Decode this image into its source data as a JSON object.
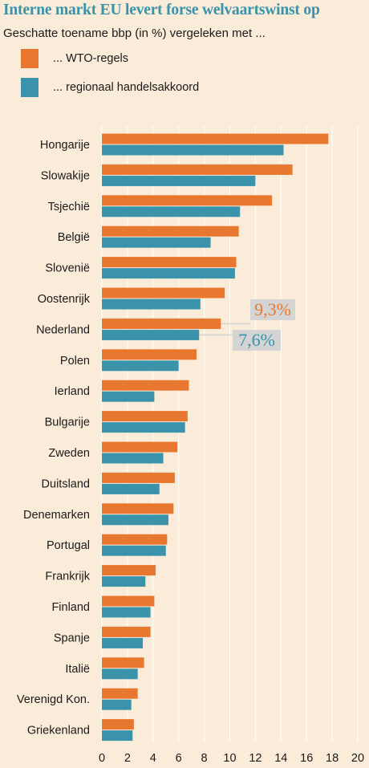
{
  "chart_data": {
    "type": "bar",
    "orientation": "horizontal",
    "title": "Interne markt EU levert forse welvaartswinst op",
    "subtitle": "Geschatte toename bbp (in %) vergeleken met ...",
    "categories": [
      "Hongarije",
      "Slowakije",
      "Tsjechië",
      "België",
      "Slovenië",
      "Oostenrijk",
      "Nederland",
      "Polen",
      "Ierland",
      "Bulgarije",
      "Zweden",
      "Duitsland",
      "Denemarken",
      "Portugal",
      "Frankrijk",
      "Finland",
      "Spanje",
      "Italië",
      "Verenigd Kon.",
      "Griekenland"
    ],
    "series": [
      {
        "name": "... WTO-regels",
        "color": "#e8782f",
        "values": [
          17.7,
          14.9,
          13.3,
          10.7,
          10.5,
          9.6,
          9.3,
          7.4,
          6.8,
          6.7,
          5.9,
          5.7,
          5.6,
          5.1,
          4.2,
          4.1,
          3.8,
          3.3,
          2.8,
          2.5
        ]
      },
      {
        "name": "... regionaal handelsakkoord",
        "color": "#3a92ab",
        "values": [
          14.2,
          12.0,
          10.8,
          8.5,
          10.4,
          7.7,
          7.6,
          6.0,
          4.1,
          6.5,
          4.8,
          4.5,
          5.2,
          5.0,
          3.4,
          3.8,
          3.2,
          2.8,
          2.3,
          2.4
        ]
      }
    ],
    "xlim": [
      0,
      20
    ],
    "xticks": [
      "0",
      "2",
      "4",
      "6",
      "8",
      "10",
      "12",
      "14",
      "16",
      "18",
      "20"
    ],
    "grid": true,
    "legend_position": "top-left",
    "annotations": [
      {
        "text": "9,3%",
        "category": "Nederland",
        "series": "... WTO-regels",
        "color": "#e8782f"
      },
      {
        "text": "7,6%",
        "category": "Nederland",
        "series": "... regionaal handelsakkoord",
        "color": "#3a92ab"
      }
    ]
  },
  "colors": {
    "background": "#fbecd9",
    "gridline": "#ffffff",
    "annotation_box": "#d4d4d4",
    "title": "#3a92ab"
  }
}
